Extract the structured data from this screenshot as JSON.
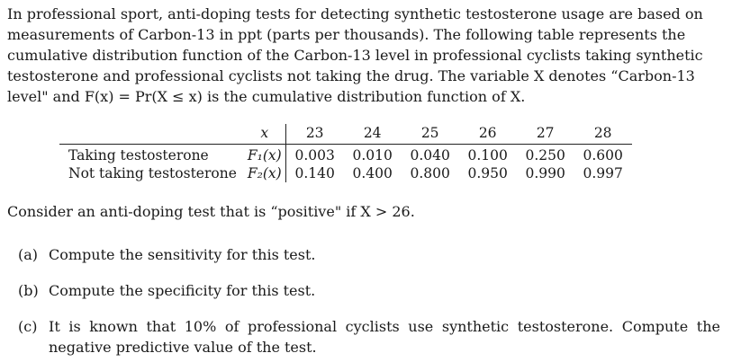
{
  "intro": {
    "lines": [
      "In professional sport, anti-doping tests for detecting synthetic testosterone usage are based on",
      "measurements of Carbon-13 in ppt (parts per thousands). The following table represents the",
      "cumulative distribution function of the Carbon-13 level in professional cyclists taking synthetic",
      "testosterone and professional cyclists not taking the drug. The variable X denotes “Carbon-13",
      "level\" and F(x) = Pr(X ≤ x) is the cumulative distribution function of X."
    ]
  },
  "table": {
    "x_label": "x",
    "x_values": [
      "23",
      "24",
      "25",
      "26",
      "27",
      "28"
    ],
    "rows": [
      {
        "label": "Taking testosterone",
        "fn": "F₁(x)",
        "values": [
          "0.003",
          "0.010",
          "0.040",
          "0.100",
          "0.250",
          "0.600"
        ]
      },
      {
        "label": "Not taking testosterone",
        "fn": "F₂(x)",
        "values": [
          "0.140",
          "0.400",
          "0.800",
          "0.950",
          "0.990",
          "0.997"
        ]
      }
    ]
  },
  "consider": "Consider an anti-doping test that is “positive\" if X > 26.",
  "questions": [
    {
      "tag": "(a)",
      "text": "Compute the sensitivity for this test."
    },
    {
      "tag": "(b)",
      "text": "Compute the specificity for this test."
    },
    {
      "tag": "(c)",
      "text": "It is known that 10% of professional cyclists use synthetic testosterone. Compute the negative predictive value of the test."
    }
  ]
}
